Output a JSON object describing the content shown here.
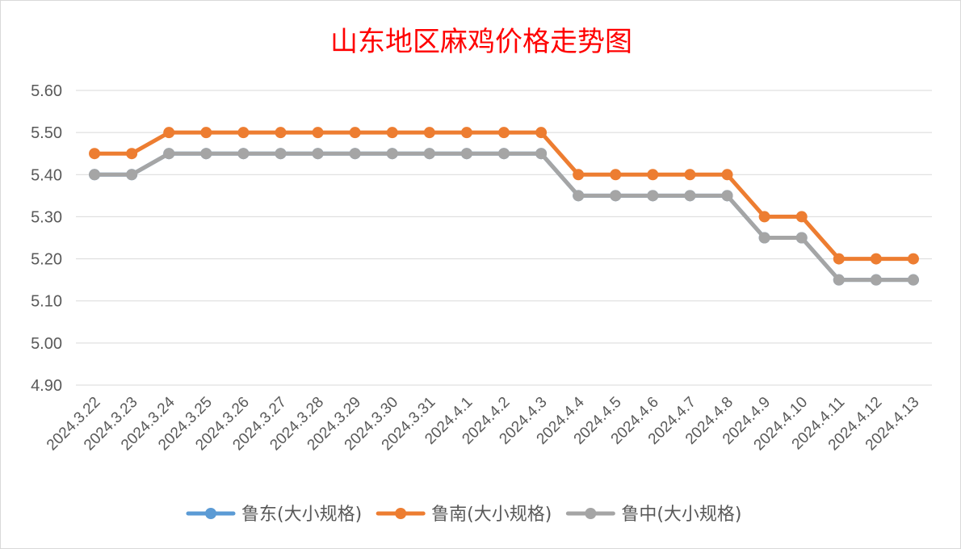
{
  "chart_data": {
    "type": "line",
    "title": "山东地区麻鸡价格走势图",
    "categories": [
      "2024.3.22",
      "2024.3.23",
      "2024.3.24",
      "2024.3.25",
      "2024.3.26",
      "2024.3.27",
      "2024.3.28",
      "2024.3.29",
      "2024.3.30",
      "2024.3.31",
      "2024.4.1",
      "2024.4.2",
      "2024.4.3",
      "2024.4.4",
      "2024.4.5",
      "2024.4.6",
      "2024.4.7",
      "2024.4.8",
      "2024.4.9",
      "2024.4.10",
      "2024.4.11",
      "2024.4.12",
      "2024.4.13"
    ],
    "series": [
      {
        "name": "鲁东(大小规格)",
        "color": "#5b9bd5",
        "values": [
          5.4,
          5.4,
          5.45,
          5.45,
          5.45,
          5.45,
          5.45,
          5.45,
          5.45,
          5.45,
          5.45,
          5.45,
          5.45,
          5.35,
          5.35,
          5.35,
          5.35,
          5.35,
          5.25,
          5.25,
          5.15,
          5.15,
          5.15
        ]
      },
      {
        "name": "鲁南(大小规格)",
        "color": "#ed7d31",
        "values": [
          5.45,
          5.45,
          5.5,
          5.5,
          5.5,
          5.5,
          5.5,
          5.5,
          5.5,
          5.5,
          5.5,
          5.5,
          5.5,
          5.4,
          5.4,
          5.4,
          5.4,
          5.4,
          5.3,
          5.3,
          5.2,
          5.2,
          5.2
        ]
      },
      {
        "name": "鲁中(大小规格)",
        "color": "#a5a5a5",
        "values": [
          5.4,
          5.4,
          5.45,
          5.45,
          5.45,
          5.45,
          5.45,
          5.45,
          5.45,
          5.45,
          5.45,
          5.45,
          5.45,
          5.35,
          5.35,
          5.35,
          5.35,
          5.35,
          5.25,
          5.25,
          5.15,
          5.15,
          5.15
        ]
      }
    ],
    "ylim": [
      4.9,
      5.6
    ],
    "yticks": [
      "5.60",
      "5.50",
      "5.40",
      "5.30",
      "5.20",
      "5.10",
      "5.00",
      "4.90"
    ],
    "grid": true,
    "legend": "bottom"
  }
}
